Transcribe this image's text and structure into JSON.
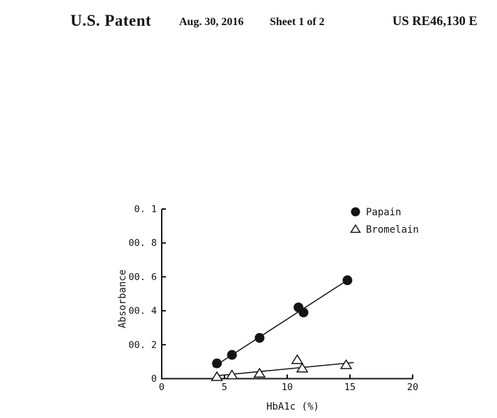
{
  "header": {
    "title": "U.S. Patent",
    "date": "Aug. 30, 2016",
    "sheet": "Sheet 1 of 2",
    "number": "US RE46,130 E"
  },
  "chart_data": {
    "type": "scatter",
    "title": "",
    "xlabel": "HbA1c  (%)",
    "ylabel": "Absorbance",
    "xlim": [
      0,
      20
    ],
    "ylim": [
      0,
      0.1
    ],
    "grid": false,
    "legend_position": "top-right",
    "x_ticks": [
      {
        "value": 0,
        "label": "0"
      },
      {
        "value": 5,
        "label": "5"
      },
      {
        "value": 10,
        "label": "10"
      },
      {
        "value": 15,
        "label": "15"
      },
      {
        "value": 20,
        "label": "20"
      }
    ],
    "y_ticks": [
      {
        "value": 0.1,
        "label": "0. 1"
      },
      {
        "value": 0.08,
        "label": "00. 8"
      },
      {
        "value": 0.06,
        "label": "00. 6"
      },
      {
        "value": 0.04,
        "label": "00. 4"
      },
      {
        "value": 0.02,
        "label": "00. 2"
      },
      {
        "value": 0.0,
        "label": "0"
      }
    ],
    "colors": {
      "ink": "#141414",
      "marker_fill_open": "#ffffff"
    },
    "series": [
      {
        "name": "Papain",
        "marker": "filled-circle",
        "points": [
          [
            4.4,
            0.009
          ],
          [
            5.6,
            0.014
          ],
          [
            7.8,
            0.024
          ],
          [
            10.9,
            0.042
          ],
          [
            11.3,
            0.039
          ],
          [
            14.8,
            0.058
          ]
        ],
        "trend_line": {
          "from": [
            4.1,
            0.0068
          ],
          "to": [
            15.1,
            0.0595
          ]
        }
      },
      {
        "name": "Bromelain",
        "marker": "open-triangle",
        "points": [
          [
            4.4,
            0.001
          ],
          [
            5.6,
            0.002
          ],
          [
            7.8,
            0.003
          ],
          [
            10.8,
            0.011
          ],
          [
            11.2,
            0.006
          ],
          [
            14.7,
            0.008
          ]
        ],
        "trend_line": {
          "from": [
            4.2,
            0.0016
          ],
          "to": [
            15.3,
            0.0095
          ]
        }
      }
    ]
  }
}
